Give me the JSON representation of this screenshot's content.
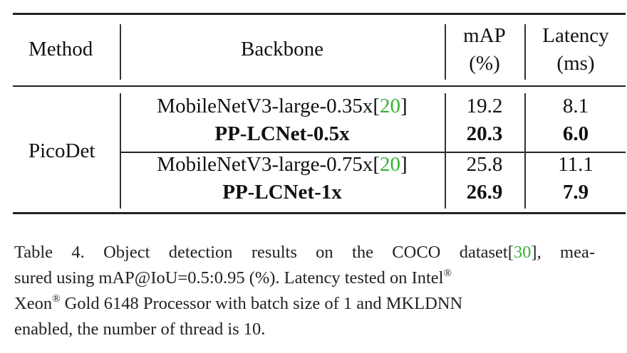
{
  "table": {
    "headers": {
      "method": "Method",
      "backbone": "Backbone",
      "map_line1": "mAP",
      "map_line2": "(%)",
      "latency_line1": "Latency",
      "latency_line2": "(ms)"
    },
    "method_group": "PicoDet",
    "rows": [
      {
        "backbone": "MobileNetV3-large-0.35x",
        "cite_open": "[",
        "cite": "20",
        "cite_close": "]",
        "map": "19.2",
        "latency": "8.1",
        "bold": false
      },
      {
        "backbone": "PP-LCNet-0.5x",
        "map": "20.3",
        "latency": "6.0",
        "bold": true
      },
      {
        "backbone": "MobileNetV3-large-0.75x",
        "cite_open": "[",
        "cite": "20",
        "cite_close": "]",
        "map": "25.8",
        "latency": "11.1",
        "bold": false
      },
      {
        "backbone": "PP-LCNet-1x",
        "map": "26.9",
        "latency": "7.9",
        "bold": true
      }
    ]
  },
  "caption": {
    "line1_pre": "Table 4. Object detection results on the COCO dataset",
    "line1_cite_open": "[",
    "line1_cite": "30",
    "line1_cite_close": "]",
    "line1_post": ", mea-",
    "line2_main": "sured using mAP@IoU=0.5:0.95 (%).  Latency tested on Intel",
    "line3_xeon": "Xeon",
    "line3_rest": " Gold 6148 Processor with batch size of 1 and MKLDNN",
    "line4": "enabled, the number of thread is 10.",
    "registered_mark": "®"
  },
  "colors": {
    "citation": "#33b533",
    "text": "#111111"
  }
}
